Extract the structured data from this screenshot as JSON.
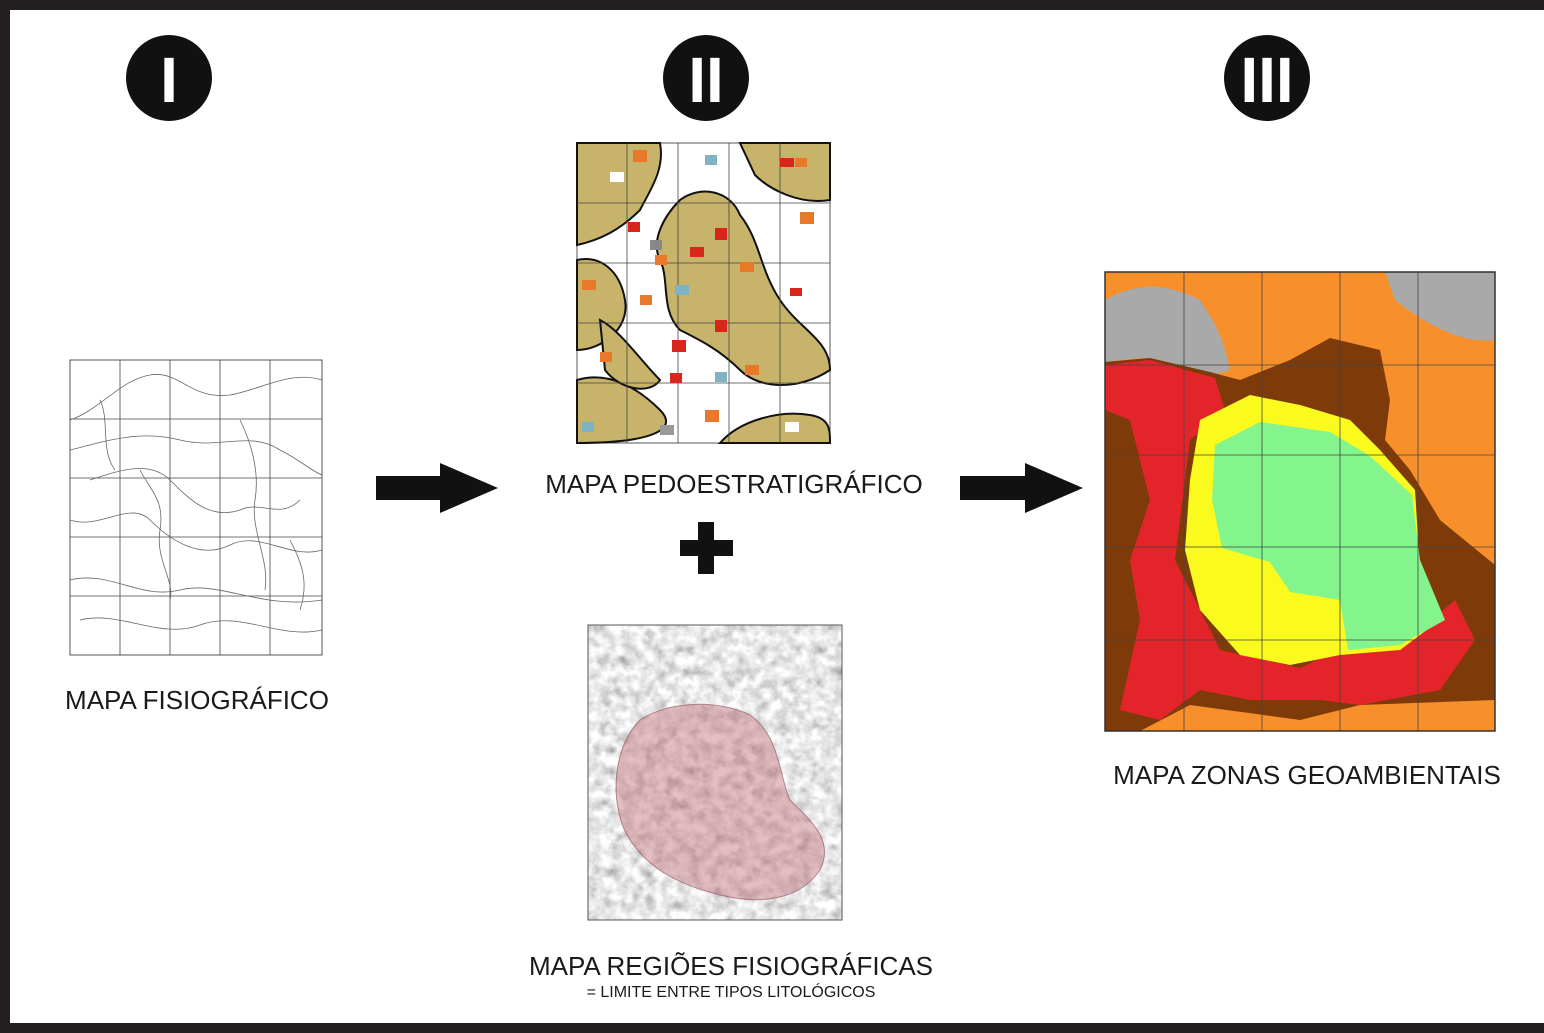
{
  "steps": [
    {
      "numeral": "I"
    },
    {
      "numeral": "II"
    },
    {
      "numeral": "III"
    }
  ],
  "maps": [
    {
      "label": "MAPA FISIOGRÁFICO"
    },
    {
      "label": "MAPA PEDOESTRATIGRÁFICO"
    },
    {
      "label": "MAPA REGIÕES FISIOGRÁFICAS",
      "sublabel": "= LIMITE ENTRE TIPOS LITOLÓGICOS"
    },
    {
      "label": "MAPA ZONAS GEOAMBIENTAIS"
    }
  ]
}
